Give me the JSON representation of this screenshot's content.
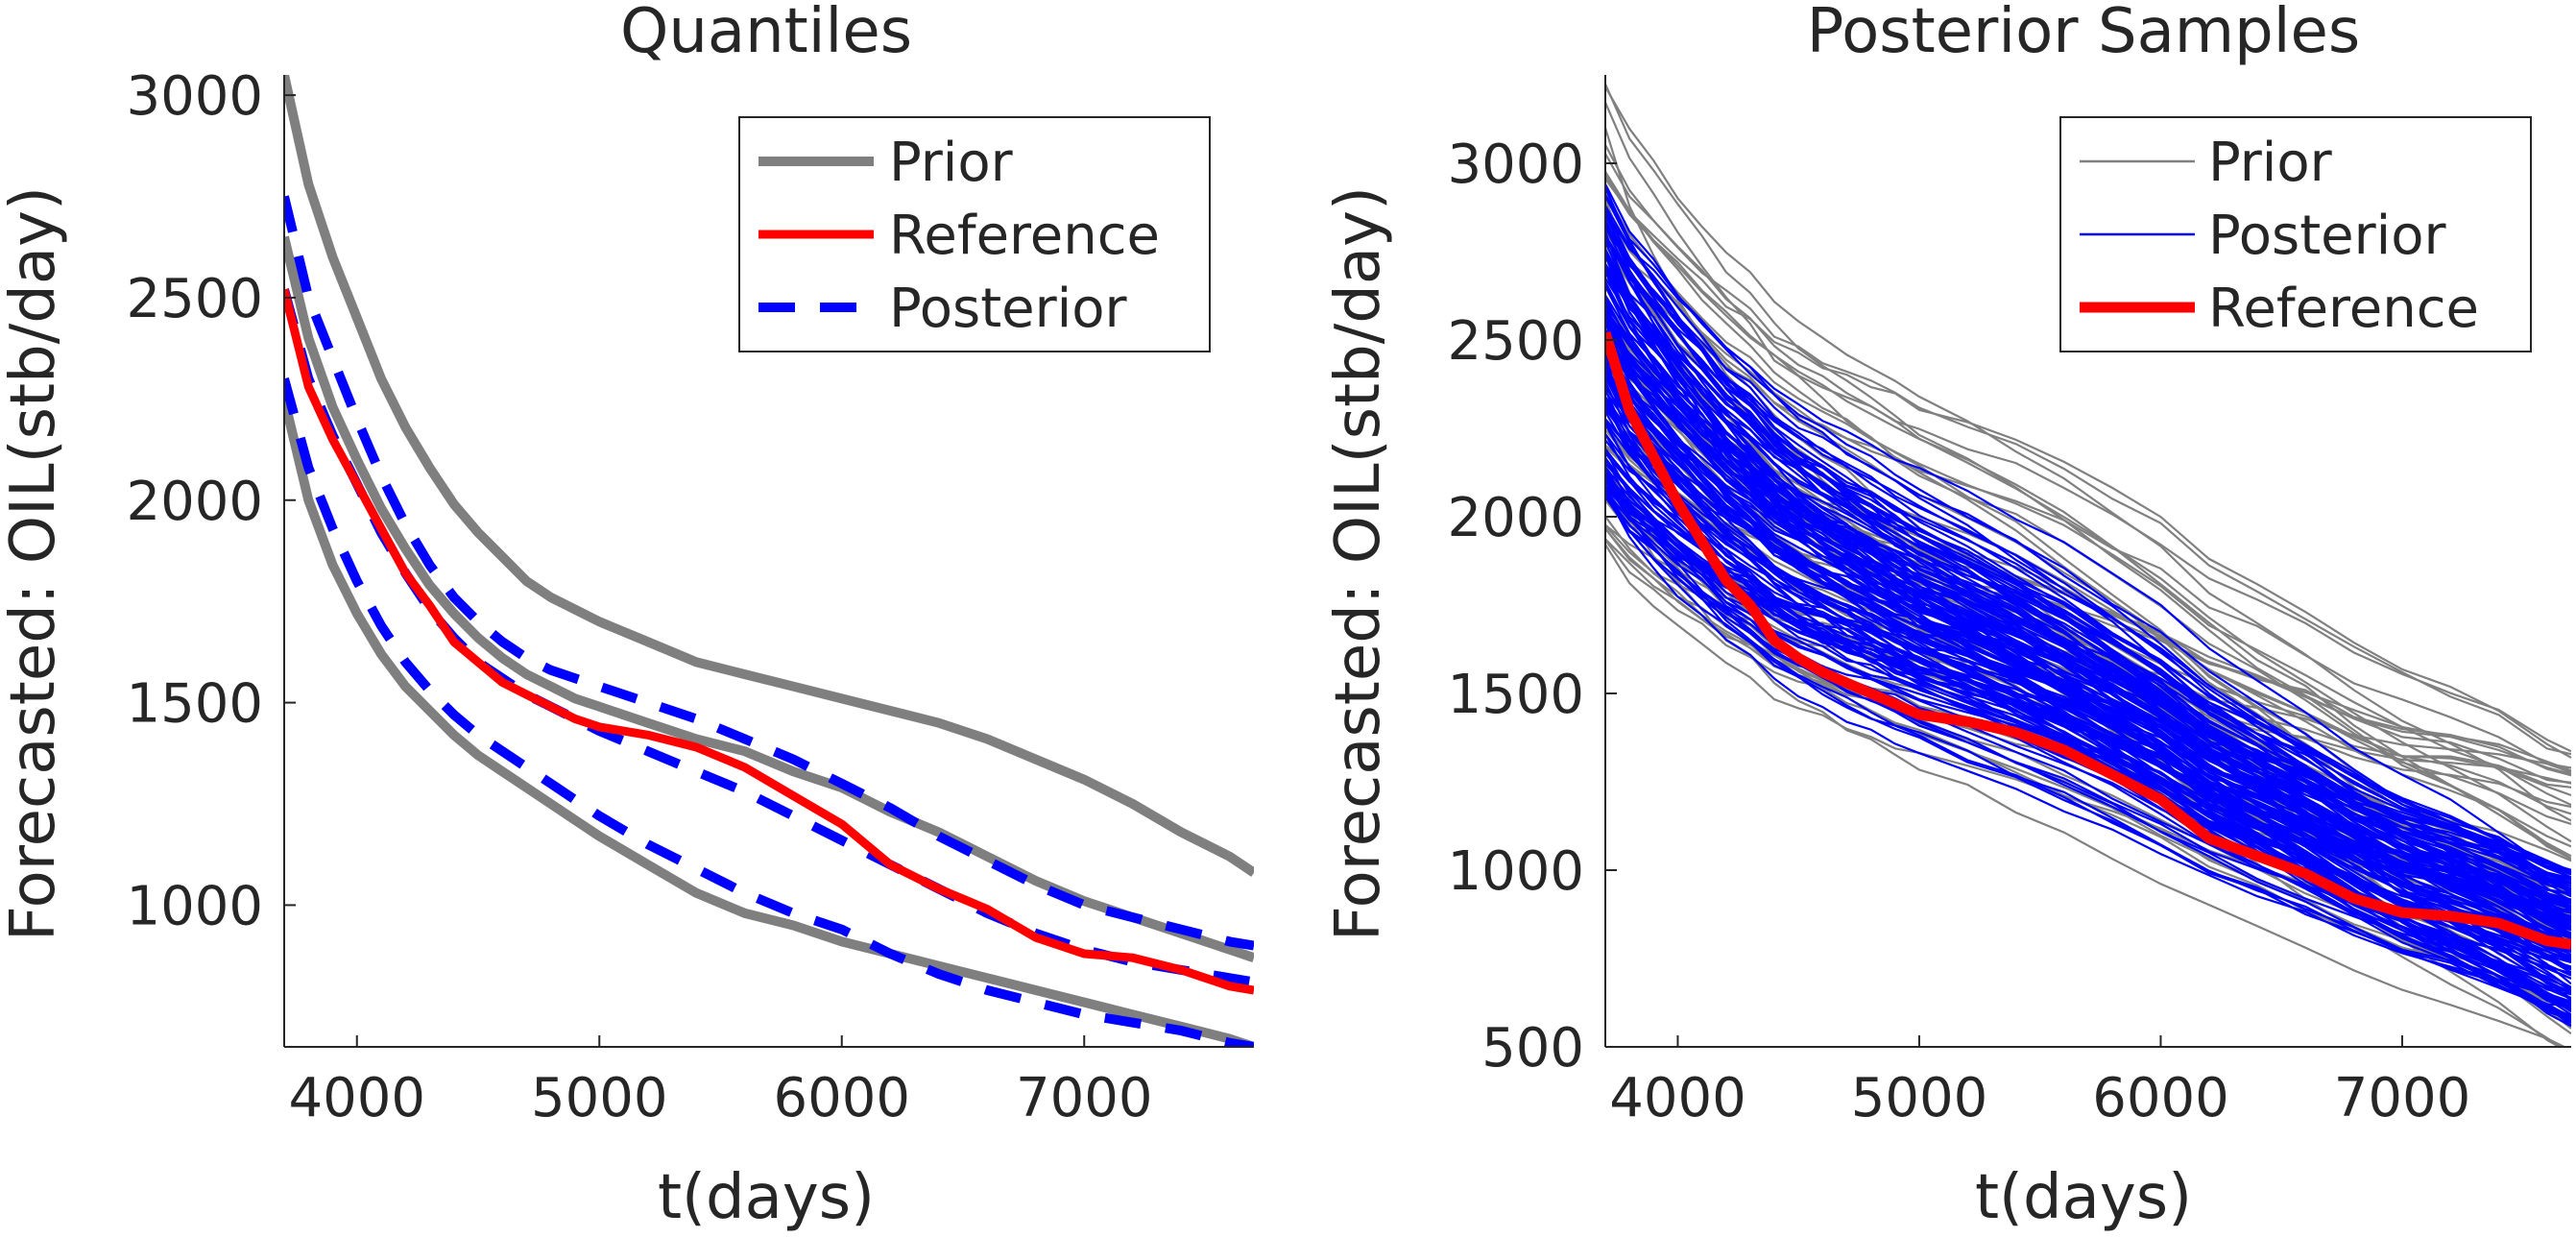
{
  "chart_data": [
    {
      "type": "line",
      "title": "Quantiles",
      "xlabel": "t(days)",
      "ylabel": "Forecasted: OIL(stb/day)",
      "xlim": [
        3700,
        7700
      ],
      "ylim": [
        650,
        3050
      ],
      "xticks": [
        4000,
        5000,
        6000,
        7000
      ],
      "yticks": [
        1000,
        1500,
        2000,
        2500,
        3000
      ],
      "grid": false,
      "legend": {
        "position": "top-right",
        "entries": [
          "Prior",
          "Reference",
          "Posterior"
        ]
      },
      "x": [
        3700,
        3800,
        3900,
        4000,
        4100,
        4200,
        4300,
        4400,
        4500,
        4600,
        4700,
        4800,
        4900,
        5000,
        5200,
        5400,
        5600,
        5800,
        6000,
        6200,
        6400,
        6600,
        6800,
        7000,
        7200,
        7400,
        7600,
        7700
      ],
      "series": [
        {
          "name": "Prior",
          "role": "prior-p90",
          "color": "#7f7f7f",
          "dash": "solid",
          "values": [
            3050,
            2780,
            2600,
            2450,
            2300,
            2180,
            2080,
            1990,
            1920,
            1860,
            1800,
            1760,
            1730,
            1700,
            1650,
            1600,
            1570,
            1540,
            1510,
            1480,
            1450,
            1410,
            1360,
            1310,
            1250,
            1180,
            1120,
            1080
          ]
        },
        {
          "name": "Prior",
          "role": "prior-p50",
          "color": "#7f7f7f",
          "dash": "solid",
          "values": [
            2650,
            2400,
            2230,
            2100,
            1980,
            1880,
            1790,
            1720,
            1660,
            1610,
            1570,
            1540,
            1510,
            1490,
            1450,
            1410,
            1380,
            1330,
            1290,
            1230,
            1180,
            1120,
            1060,
            1010,
            970,
            930,
            890,
            870
          ]
        },
        {
          "name": "Prior",
          "role": "prior-p10",
          "color": "#7f7f7f",
          "dash": "solid",
          "values": [
            2250,
            2000,
            1840,
            1720,
            1620,
            1540,
            1480,
            1420,
            1370,
            1330,
            1290,
            1250,
            1210,
            1170,
            1100,
            1030,
            980,
            950,
            910,
            880,
            850,
            820,
            790,
            760,
            730,
            700,
            670,
            650
          ]
        },
        {
          "name": "Reference",
          "role": "reference",
          "color": "#ff0000",
          "dash": "solid",
          "values": [
            2520,
            2280,
            2150,
            2040,
            1930,
            1820,
            1740,
            1650,
            1600,
            1550,
            1520,
            1490,
            1460,
            1440,
            1420,
            1390,
            1340,
            1270,
            1200,
            1100,
            1040,
            990,
            920,
            880,
            870,
            840,
            800,
            790
          ]
        },
        {
          "name": "Posterior",
          "role": "posterior-p90",
          "color": "#0000ff",
          "dash": "dash",
          "values": [
            2750,
            2500,
            2350,
            2200,
            2060,
            1940,
            1840,
            1760,
            1700,
            1650,
            1610,
            1580,
            1560,
            1540,
            1500,
            1460,
            1410,
            1360,
            1300,
            1240,
            1170,
            1110,
            1050,
            1000,
            970,
            940,
            910,
            900
          ]
        },
        {
          "name": "Posterior",
          "role": "posterior-p50",
          "color": "#0000ff",
          "dash": "dash",
          "values": [
            2520,
            2300,
            2160,
            2040,
            1920,
            1820,
            1730,
            1660,
            1600,
            1560,
            1520,
            1490,
            1460,
            1430,
            1380,
            1330,
            1280,
            1220,
            1160,
            1100,
            1040,
            980,
            930,
            890,
            860,
            840,
            820,
            810
          ]
        },
        {
          "name": "Posterior",
          "role": "posterior-p10",
          "color": "#0000ff",
          "dash": "dash",
          "values": [
            2300,
            2080,
            1930,
            1800,
            1690,
            1600,
            1530,
            1470,
            1420,
            1380,
            1340,
            1300,
            1260,
            1220,
            1150,
            1090,
            1030,
            980,
            940,
            880,
            830,
            790,
            760,
            730,
            710,
            690,
            660,
            650
          ]
        }
      ]
    },
    {
      "type": "line",
      "title": "Posterior Samples",
      "xlabel": "t(days)",
      "ylabel": "Forecasted: OIL(stb/day)",
      "xlim": [
        3700,
        7700
      ],
      "ylim": [
        500,
        3250
      ],
      "xticks": [
        4000,
        5000,
        6000,
        7000
      ],
      "yticks": [
        500,
        1000,
        1500,
        2000,
        2500,
        3000
      ],
      "grid": false,
      "legend": {
        "position": "top-right",
        "entries": [
          "Prior",
          "Posterior",
          "Reference"
        ]
      },
      "x": [
        3700,
        3800,
        3900,
        4000,
        4100,
        4200,
        4300,
        4400,
        4500,
        4600,
        4700,
        4800,
        4900,
        5000,
        5200,
        5400,
        5600,
        5800,
        6000,
        6200,
        6400,
        6600,
        6800,
        7000,
        7200,
        7400,
        7600,
        7700
      ],
      "series": [
        {
          "name": "Prior",
          "color": "#808080",
          "width": "thin",
          "samples": {
            "count": 60,
            "start_range": [
              1900,
              3250
            ],
            "end_range": [
              480,
              1350
            ]
          }
        },
        {
          "name": "Posterior",
          "color": "#0000ff",
          "width": "thin",
          "samples": {
            "count": 150,
            "start_range": [
              2050,
              2950
            ],
            "end_range": [
              560,
              1000
            ]
          }
        },
        {
          "name": "Reference",
          "color": "#ff0000",
          "width": "thick",
          "values": [
            2520,
            2300,
            2170,
            2040,
            1930,
            1820,
            1750,
            1650,
            1600,
            1560,
            1530,
            1500,
            1470,
            1440,
            1420,
            1390,
            1340,
            1270,
            1200,
            1090,
            1040,
            990,
            920,
            880,
            870,
            850,
            800,
            790
          ]
        }
      ]
    }
  ]
}
